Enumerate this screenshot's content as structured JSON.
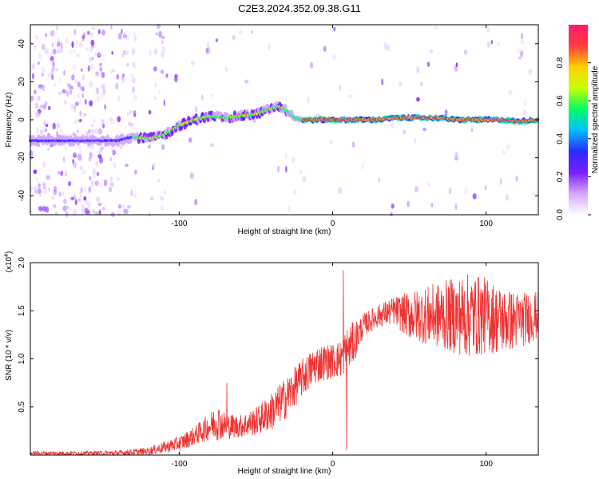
{
  "title": "C2E3.2024.352.09.38.G11",
  "chart_data": [
    {
      "type": "heatmap",
      "xlabel": "Height of straight line (km)",
      "ylabel": "Frequency (Hz)",
      "xlim": [
        -197,
        134
      ],
      "ylim": [
        -50,
        50
      ],
      "xticks": [
        -100,
        0,
        100
      ],
      "yticks": [
        -40,
        -20,
        0,
        20,
        40
      ],
      "ridge": {
        "x": [
          -197,
          -180,
          -165,
          -150,
          -140,
          -130,
          -120,
          -110,
          -100,
          -90,
          -80,
          -70,
          -60,
          -50,
          -40,
          -35,
          -30,
          -25,
          -20,
          -10,
          0,
          10,
          20,
          30,
          40,
          50,
          60,
          70,
          80,
          90,
          100,
          110,
          120,
          134
        ],
        "y": [
          -11,
          -11,
          -11,
          -11,
          -11,
          -9,
          -10,
          -8,
          -3,
          0,
          2,
          1,
          2,
          3,
          6,
          7,
          5,
          1,
          0,
          0,
          0,
          0,
          0,
          0,
          1,
          1,
          1,
          1,
          0,
          0,
          0,
          0,
          -1,
          0
        ]
      },
      "colorbar": {
        "label": "Normalized spectral amplitude",
        "range": [
          0,
          1
        ],
        "ticks": [
          "0.0",
          "0.2",
          "0.4",
          "0.6",
          "0.8"
        ],
        "colors": [
          "#ffffff",
          "#d6a6ff",
          "#7a1fff",
          "#2a2aff",
          "#00bfff",
          "#00ff66",
          "#c8ff00",
          "#ffd000",
          "#ff3b3b",
          "#ff1a6a"
        ]
      }
    },
    {
      "type": "line",
      "xlabel": "Height of straight line (km)",
      "ylabel": "SNR (10 * v/v)",
      "ylabel_exp": "(x10",
      "ylabel_exp_power": "4",
      "ylabel_exp_close": ")",
      "xlim": [
        -197,
        134
      ],
      "ylim": [
        0,
        2.0
      ],
      "xticks": [
        -100,
        0,
        100
      ],
      "yticks": [
        0.5,
        1.0,
        1.5,
        2.0
      ],
      "ytick_labels": [
        "0.5",
        "1.0",
        "1.5",
        "2.0"
      ],
      "color": "#ee3333",
      "envelope": {
        "x": [
          -197,
          -160,
          -140,
          -120,
          -100,
          -90,
          -80,
          -75,
          -70,
          -60,
          -50,
          -40,
          -30,
          -20,
          -10,
          0,
          5,
          10,
          15,
          20,
          30,
          40,
          50,
          60,
          70,
          80,
          90,
          100,
          110,
          120,
          134
        ],
        "mean": [
          0.02,
          0.02,
          0.02,
          0.04,
          0.12,
          0.2,
          0.3,
          0.35,
          0.3,
          0.3,
          0.35,
          0.45,
          0.6,
          0.8,
          0.95,
          0.98,
          1.0,
          1.1,
          1.2,
          1.35,
          1.45,
          1.5,
          1.45,
          1.45,
          1.45,
          1.45,
          1.45,
          1.45,
          1.4,
          1.4,
          1.45
        ],
        "amp": [
          0.02,
          0.02,
          0.03,
          0.04,
          0.08,
          0.1,
          0.14,
          0.2,
          0.14,
          0.12,
          0.15,
          0.2,
          0.22,
          0.2,
          0.2,
          0.18,
          0.2,
          0.25,
          0.2,
          0.12,
          0.12,
          0.15,
          0.25,
          0.3,
          0.35,
          0.4,
          0.45,
          0.4,
          0.35,
          0.3,
          0.25
        ]
      },
      "spikes": [
        {
          "x": -69,
          "y": 0.75
        },
        {
          "x": 7,
          "y": 1.92
        },
        {
          "x": 9,
          "y": 0.05
        }
      ]
    }
  ]
}
